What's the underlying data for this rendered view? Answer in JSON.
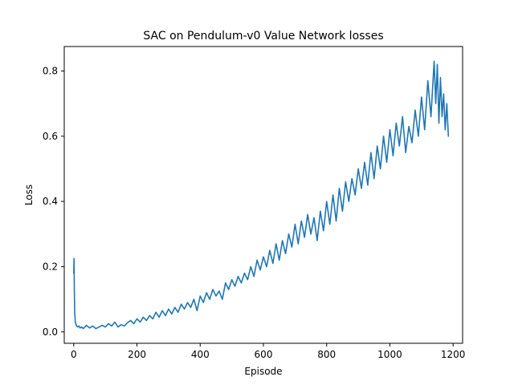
{
  "chart_data": {
    "type": "line",
    "title": "SAC on Pendulum-v0 Value Network losses",
    "xlabel": "Episode",
    "ylabel": "Loss",
    "xlim": [
      -30,
      1230
    ],
    "ylim": [
      -0.035,
      0.875
    ],
    "xticks": [
      0,
      200,
      400,
      600,
      800,
      1000,
      1200
    ],
    "yticks": [
      0.0,
      0.2,
      0.4,
      0.6,
      0.8
    ],
    "xtick_labels": [
      "0",
      "200",
      "400",
      "600",
      "800",
      "1000",
      "1200"
    ],
    "ytick_labels": [
      "0.0",
      "0.2",
      "0.4",
      "0.6",
      "0.8"
    ],
    "grid": false,
    "legend": "none",
    "series": [
      {
        "color": "#1f77b4",
        "x": [
          0,
          1,
          2,
          3,
          5,
          8,
          12,
          16,
          20,
          25,
          30,
          40,
          50,
          60,
          70,
          80,
          90,
          100,
          110,
          120,
          130,
          140,
          150,
          160,
          170,
          180,
          190,
          200,
          210,
          220,
          230,
          240,
          250,
          260,
          270,
          280,
          290,
          300,
          310,
          320,
          330,
          340,
          350,
          360,
          370,
          380,
          390,
          400,
          410,
          420,
          430,
          440,
          450,
          460,
          470,
          480,
          490,
          500,
          510,
          520,
          530,
          540,
          550,
          560,
          570,
          580,
          590,
          600,
          610,
          620,
          630,
          640,
          650,
          660,
          670,
          680,
          690,
          700,
          710,
          720,
          730,
          740,
          750,
          760,
          770,
          780,
          790,
          800,
          810,
          820,
          830,
          840,
          850,
          860,
          870,
          880,
          890,
          900,
          910,
          920,
          930,
          940,
          950,
          960,
          970,
          980,
          990,
          1000,
          1010,
          1020,
          1030,
          1040,
          1050,
          1060,
          1070,
          1080,
          1090,
          1100,
          1110,
          1120,
          1130,
          1140,
          1145,
          1150,
          1155,
          1160,
          1165,
          1170,
          1175,
          1180,
          1185
        ],
        "y": [
          0.18,
          0.225,
          0.12,
          0.06,
          0.03,
          0.02,
          0.015,
          0.018,
          0.012,
          0.015,
          0.01,
          0.02,
          0.012,
          0.018,
          0.01,
          0.015,
          0.02,
          0.015,
          0.025,
          0.018,
          0.03,
          0.015,
          0.022,
          0.018,
          0.028,
          0.035,
          0.025,
          0.04,
          0.03,
          0.045,
          0.035,
          0.05,
          0.04,
          0.06,
          0.045,
          0.065,
          0.05,
          0.07,
          0.055,
          0.075,
          0.06,
          0.085,
          0.07,
          0.09,
          0.075,
          0.1,
          0.065,
          0.11,
          0.09,
          0.12,
          0.1,
          0.13,
          0.11,
          0.125,
          0.1,
          0.15,
          0.13,
          0.16,
          0.14,
          0.17,
          0.15,
          0.18,
          0.16,
          0.2,
          0.17,
          0.22,
          0.19,
          0.23,
          0.2,
          0.25,
          0.21,
          0.27,
          0.22,
          0.28,
          0.24,
          0.3,
          0.26,
          0.33,
          0.27,
          0.34,
          0.29,
          0.36,
          0.3,
          0.35,
          0.28,
          0.37,
          0.31,
          0.4,
          0.33,
          0.42,
          0.34,
          0.44,
          0.37,
          0.46,
          0.4,
          0.47,
          0.42,
          0.5,
          0.44,
          0.52,
          0.45,
          0.55,
          0.47,
          0.57,
          0.5,
          0.6,
          0.52,
          0.62,
          0.54,
          0.64,
          0.57,
          0.66,
          0.55,
          0.63,
          0.58,
          0.68,
          0.6,
          0.72,
          0.62,
          0.77,
          0.66,
          0.83,
          0.7,
          0.82,
          0.64,
          0.78,
          0.66,
          0.73,
          0.62,
          0.7,
          0.6
        ]
      }
    ]
  }
}
